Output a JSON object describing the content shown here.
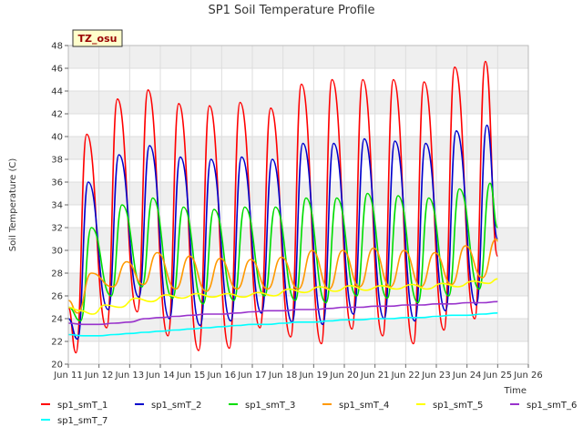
{
  "chart_data": {
    "type": "line",
    "title": "SP1 Soil Temperature Profile",
    "xlabel": "Time",
    "ylabel": "Soil Temperature (C)",
    "site_badge": "TZ_osu",
    "xlim": [
      11,
      26
    ],
    "ylim": [
      20,
      48
    ],
    "y_ticks": [
      20,
      22,
      24,
      26,
      28,
      30,
      32,
      34,
      36,
      38,
      40,
      42,
      44,
      46,
      48
    ],
    "x_ticks": [
      {
        "x": 11,
        "label": "Jun 11"
      },
      {
        "x": 12,
        "label": "Jun 12"
      },
      {
        "x": 13,
        "label": "Jun 13"
      },
      {
        "x": 14,
        "label": "Jun 14"
      },
      {
        "x": 15,
        "label": "Jun 15"
      },
      {
        "x": 16,
        "label": "Jun 16"
      },
      {
        "x": 17,
        "label": "Jun 17"
      },
      {
        "x": 18,
        "label": "Jun 18"
      },
      {
        "x": 19,
        "label": "Jun 19"
      },
      {
        "x": 20,
        "label": "Jun 20"
      },
      {
        "x": 21,
        "label": "Jun 21"
      },
      {
        "x": 22,
        "label": "Jun 22"
      },
      {
        "x": 23,
        "label": "Jun 23"
      },
      {
        "x": 24,
        "label": "Jun 24"
      },
      {
        "x": 25,
        "label": "Jun 25"
      },
      {
        "x": 26,
        "label": "Jun 26"
      }
    ],
    "grid": true,
    "legend_position": "bottom",
    "series": [
      {
        "name": "sp1_smT_1",
        "color": "#ff0000",
        "points": [
          [
            11.0,
            25.0
          ],
          [
            11.25,
            21.0
          ],
          [
            11.6,
            40.2
          ],
          [
            12.25,
            23.2
          ],
          [
            12.6,
            43.3
          ],
          [
            13.25,
            24.6
          ],
          [
            13.6,
            44.1
          ],
          [
            14.25,
            22.5
          ],
          [
            14.6,
            42.9
          ],
          [
            15.25,
            21.2
          ],
          [
            15.6,
            42.7
          ],
          [
            16.25,
            21.4
          ],
          [
            16.6,
            43.0
          ],
          [
            17.25,
            23.2
          ],
          [
            17.6,
            42.5
          ],
          [
            18.25,
            22.4
          ],
          [
            18.6,
            44.6
          ],
          [
            19.25,
            21.8
          ],
          [
            19.6,
            45.0
          ],
          [
            20.25,
            23.1
          ],
          [
            20.6,
            45.0
          ],
          [
            21.25,
            22.5
          ],
          [
            21.6,
            45.0
          ],
          [
            22.25,
            21.8
          ],
          [
            22.6,
            44.8
          ],
          [
            23.25,
            23.0
          ],
          [
            23.6,
            46.1
          ],
          [
            24.25,
            24.0
          ],
          [
            24.6,
            46.6
          ],
          [
            25.0,
            29.5
          ]
        ]
      },
      {
        "name": "sp1_smT_2",
        "color": "#0000cc",
        "points": [
          [
            11.0,
            24.0
          ],
          [
            11.3,
            22.2
          ],
          [
            11.65,
            36.0
          ],
          [
            12.3,
            24.8
          ],
          [
            12.65,
            38.4
          ],
          [
            13.3,
            25.9
          ],
          [
            13.65,
            39.2
          ],
          [
            14.3,
            24.0
          ],
          [
            14.65,
            38.2
          ],
          [
            15.3,
            23.4
          ],
          [
            15.65,
            38.0
          ],
          [
            16.3,
            23.8
          ],
          [
            16.65,
            38.2
          ],
          [
            17.3,
            24.5
          ],
          [
            17.65,
            38.0
          ],
          [
            18.3,
            23.7
          ],
          [
            18.65,
            39.4
          ],
          [
            19.3,
            23.5
          ],
          [
            19.65,
            39.4
          ],
          [
            20.3,
            24.4
          ],
          [
            20.65,
            39.8
          ],
          [
            21.3,
            24.0
          ],
          [
            21.65,
            39.6
          ],
          [
            22.3,
            23.8
          ],
          [
            22.65,
            39.4
          ],
          [
            23.3,
            24.7
          ],
          [
            23.65,
            40.5
          ],
          [
            24.3,
            25.2
          ],
          [
            24.65,
            41.0
          ],
          [
            25.0,
            31.0
          ]
        ]
      },
      {
        "name": "sp1_smT_3",
        "color": "#00dd00",
        "points": [
          [
            11.0,
            25.0
          ],
          [
            11.4,
            23.8
          ],
          [
            11.75,
            32.0
          ],
          [
            12.4,
            26.0
          ],
          [
            12.75,
            34.0
          ],
          [
            13.4,
            26.8
          ],
          [
            13.75,
            34.6
          ],
          [
            14.4,
            25.8
          ],
          [
            14.75,
            33.8
          ],
          [
            15.4,
            25.3
          ],
          [
            15.75,
            33.6
          ],
          [
            16.4,
            25.6
          ],
          [
            16.75,
            33.8
          ],
          [
            17.4,
            26.0
          ],
          [
            17.75,
            33.8
          ],
          [
            18.4,
            25.6
          ],
          [
            18.75,
            34.6
          ],
          [
            19.4,
            25.4
          ],
          [
            19.75,
            34.6
          ],
          [
            20.4,
            26.0
          ],
          [
            20.75,
            35.0
          ],
          [
            21.4,
            25.8
          ],
          [
            21.75,
            34.8
          ],
          [
            22.4,
            25.4
          ],
          [
            22.75,
            34.6
          ],
          [
            23.4,
            26.0
          ],
          [
            23.75,
            35.4
          ],
          [
            24.4,
            26.6
          ],
          [
            24.75,
            35.9
          ],
          [
            25.0,
            32.0
          ]
        ]
      },
      {
        "name": "sp1_smT_4",
        "color": "#ff9900",
        "points": [
          [
            11.0,
            25.6
          ],
          [
            11.3,
            24.5
          ],
          [
            11.75,
            28.0
          ],
          [
            12.45,
            26.8
          ],
          [
            12.9,
            29.0
          ],
          [
            13.45,
            27.0
          ],
          [
            13.9,
            29.8
          ],
          [
            14.5,
            26.6
          ],
          [
            14.95,
            29.5
          ],
          [
            15.5,
            26.4
          ],
          [
            15.95,
            29.3
          ],
          [
            16.5,
            26.6
          ],
          [
            16.95,
            29.2
          ],
          [
            17.5,
            26.6
          ],
          [
            17.95,
            29.4
          ],
          [
            18.5,
            26.6
          ],
          [
            18.95,
            30.0
          ],
          [
            19.5,
            26.6
          ],
          [
            19.95,
            30.0
          ],
          [
            20.5,
            26.8
          ],
          [
            20.95,
            30.2
          ],
          [
            21.5,
            26.8
          ],
          [
            21.95,
            30.0
          ],
          [
            22.5,
            26.8
          ],
          [
            22.95,
            29.8
          ],
          [
            23.5,
            27.0
          ],
          [
            23.95,
            30.4
          ],
          [
            24.5,
            27.6
          ],
          [
            24.95,
            31.0
          ],
          [
            25.0,
            30.8
          ]
        ]
      },
      {
        "name": "sp1_smT_5",
        "color": "#ffff00",
        "points": [
          [
            11.0,
            25.0
          ],
          [
            11.4,
            24.7
          ],
          [
            11.8,
            24.4
          ],
          [
            12.2,
            25.2
          ],
          [
            12.7,
            25.0
          ],
          [
            13.2,
            25.8
          ],
          [
            13.7,
            25.5
          ],
          [
            14.2,
            26.1
          ],
          [
            14.7,
            25.8
          ],
          [
            15.2,
            26.2
          ],
          [
            15.7,
            25.9
          ],
          [
            16.2,
            26.2
          ],
          [
            16.7,
            25.9
          ],
          [
            17.2,
            26.3
          ],
          [
            17.7,
            26.0
          ],
          [
            18.2,
            26.6
          ],
          [
            18.7,
            26.3
          ],
          [
            19.2,
            26.8
          ],
          [
            19.7,
            26.4
          ],
          [
            20.2,
            26.9
          ],
          [
            20.7,
            26.5
          ],
          [
            21.2,
            26.9
          ],
          [
            21.7,
            26.6
          ],
          [
            22.2,
            27.0
          ],
          [
            22.7,
            26.6
          ],
          [
            23.2,
            27.1
          ],
          [
            23.7,
            26.8
          ],
          [
            24.2,
            27.3
          ],
          [
            24.7,
            27.1
          ],
          [
            25.0,
            27.5
          ]
        ]
      },
      {
        "name": "sp1_smT_6",
        "color": "#9933cc",
        "points": [
          [
            11.0,
            23.6
          ],
          [
            11.5,
            23.5
          ],
          [
            12.0,
            23.5
          ],
          [
            12.5,
            23.6
          ],
          [
            13.0,
            23.7
          ],
          [
            13.5,
            24.0
          ],
          [
            14.0,
            24.1
          ],
          [
            14.5,
            24.2
          ],
          [
            15.0,
            24.3
          ],
          [
            15.5,
            24.4
          ],
          [
            16.0,
            24.4
          ],
          [
            16.5,
            24.5
          ],
          [
            17.0,
            24.6
          ],
          [
            17.5,
            24.7
          ],
          [
            18.0,
            24.7
          ],
          [
            18.5,
            24.8
          ],
          [
            19.0,
            24.8
          ],
          [
            19.5,
            24.9
          ],
          [
            20.0,
            25.0
          ],
          [
            20.5,
            25.0
          ],
          [
            21.0,
            25.1
          ],
          [
            21.5,
            25.1
          ],
          [
            22.0,
            25.2
          ],
          [
            22.5,
            25.2
          ],
          [
            23.0,
            25.3
          ],
          [
            23.5,
            25.3
          ],
          [
            24.0,
            25.4
          ],
          [
            24.5,
            25.4
          ],
          [
            25.0,
            25.5
          ]
        ]
      },
      {
        "name": "sp1_smT_7",
        "color": "#00ffff",
        "points": [
          [
            11.0,
            22.6
          ],
          [
            11.5,
            22.5
          ],
          [
            12.0,
            22.5
          ],
          [
            12.5,
            22.6
          ],
          [
            13.0,
            22.7
          ],
          [
            13.5,
            22.8
          ],
          [
            14.0,
            22.9
          ],
          [
            14.5,
            23.0
          ],
          [
            15.0,
            23.1
          ],
          [
            15.5,
            23.2
          ],
          [
            16.0,
            23.3
          ],
          [
            16.5,
            23.4
          ],
          [
            17.0,
            23.5
          ],
          [
            17.5,
            23.5
          ],
          [
            18.0,
            23.6
          ],
          [
            18.5,
            23.7
          ],
          [
            19.0,
            23.7
          ],
          [
            19.5,
            23.8
          ],
          [
            20.0,
            23.9
          ],
          [
            20.5,
            23.9
          ],
          [
            21.0,
            24.0
          ],
          [
            21.5,
            24.0
          ],
          [
            22.0,
            24.1
          ],
          [
            22.5,
            24.1
          ],
          [
            23.0,
            24.2
          ],
          [
            23.5,
            24.3
          ],
          [
            24.0,
            24.3
          ],
          [
            24.5,
            24.4
          ],
          [
            25.0,
            24.5
          ]
        ]
      }
    ]
  }
}
